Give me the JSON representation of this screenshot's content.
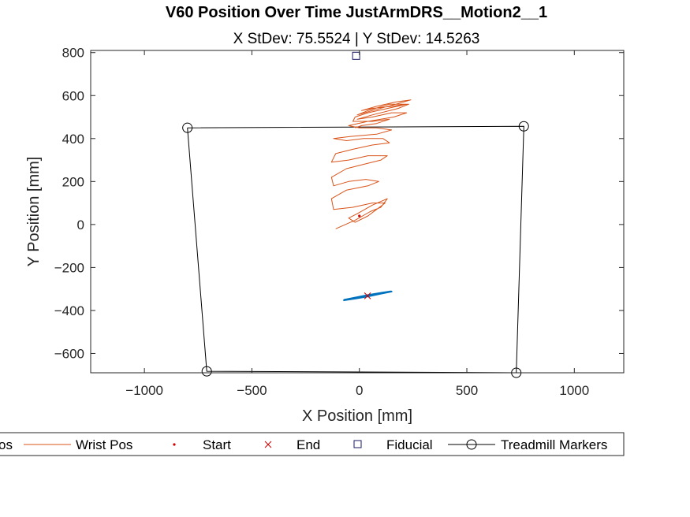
{
  "chart_data": {
    "type": "line",
    "title": "V60 Position Over Time JustArmDRS__Motion2__1",
    "subtitle": "X StDev: 75.5524  |  Y StDev: 14.5263",
    "xlabel": "X Position [mm]",
    "ylabel": "Y Position [mm]",
    "xlim": [
      -1250,
      1230
    ],
    "ylim": [
      -690,
      810
    ],
    "xticks": [
      -1000,
      -500,
      0,
      500,
      1000
    ],
    "yticks": [
      -600,
      -400,
      -200,
      0,
      200,
      400,
      600,
      800
    ],
    "xtick_labels": [
      "−1000",
      "−500",
      "0",
      "500",
      "1000"
    ],
    "ytick_labels": [
      "−600",
      "−400",
      "−200",
      "0",
      "200",
      "400",
      "600",
      "800"
    ],
    "grid": false,
    "legend_position": "bottom-outside",
    "series": [
      {
        "name": "Elbow Pos",
        "legend_label": "os",
        "color": "#0072BD",
        "points": [
          [
            -75,
            -353
          ],
          [
            -20,
            -345
          ],
          [
            40,
            -335
          ],
          [
            100,
            -322
          ],
          [
            150,
            -312
          ],
          [
            100,
            -318
          ],
          [
            40,
            -330
          ],
          [
            -20,
            -342
          ],
          [
            -70,
            -350
          ],
          [
            -20,
            -340
          ],
          [
            40,
            -328
          ],
          [
            100,
            -318
          ],
          [
            145,
            -311
          ],
          [
            90,
            -320
          ],
          [
            30,
            -333
          ],
          [
            -30,
            -346
          ],
          [
            -60,
            -350
          ]
        ]
      },
      {
        "name": "Wrist Pos",
        "legend_label": "Wrist Pos",
        "color": "#D95319",
        "points": [
          [
            -110,
            -20
          ],
          [
            -20,
            20
          ],
          [
            50,
            60
          ],
          [
            100,
            80
          ],
          [
            130,
            120
          ],
          [
            60,
            90
          ],
          [
            -10,
            50
          ],
          [
            -50,
            30
          ],
          [
            -20,
            10
          ],
          [
            40,
            40
          ],
          [
            80,
            70
          ],
          [
            120,
            100
          ],
          [
            60,
            100
          ],
          [
            -30,
            80
          ],
          [
            -120,
            70
          ],
          [
            -130,
            120
          ],
          [
            -60,
            160
          ],
          [
            40,
            180
          ],
          [
            90,
            200
          ],
          [
            30,
            210
          ],
          [
            -50,
            200
          ],
          [
            -120,
            180
          ],
          [
            -130,
            220
          ],
          [
            -60,
            260
          ],
          [
            20,
            280
          ],
          [
            100,
            300
          ],
          [
            130,
            320
          ],
          [
            40,
            320
          ],
          [
            -50,
            300
          ],
          [
            -130,
            290
          ],
          [
            -110,
            330
          ],
          [
            -30,
            350
          ],
          [
            60,
            370
          ],
          [
            140,
            380
          ],
          [
            110,
            400
          ],
          [
            20,
            400
          ],
          [
            -60,
            390
          ],
          [
            -120,
            400
          ],
          [
            -40,
            410
          ],
          [
            80,
            420
          ],
          [
            150,
            440
          ],
          [
            80,
            450
          ],
          [
            0,
            450
          ],
          [
            -50,
            460
          ],
          [
            40,
            480
          ],
          [
            160,
            500
          ],
          [
            220,
            520
          ],
          [
            150,
            520
          ],
          [
            60,
            500
          ],
          [
            -10,
            490
          ],
          [
            60,
            510
          ],
          [
            180,
            540
          ],
          [
            230,
            560
          ],
          [
            140,
            560
          ],
          [
            40,
            530
          ],
          [
            -10,
            510
          ],
          [
            60,
            530
          ],
          [
            170,
            560
          ],
          [
            240,
            580
          ],
          [
            170,
            570
          ],
          [
            80,
            550
          ],
          [
            10,
            530
          ],
          [
            60,
            540
          ],
          [
            150,
            550
          ],
          [
            220,
            560
          ],
          [
            130,
            540
          ],
          [
            40,
            520
          ],
          [
            -20,
            500
          ],
          [
            -30,
            480
          ],
          [
            60,
            480
          ],
          [
            140,
            490
          ],
          [
            80,
            470
          ],
          [
            10,
            460
          ],
          [
            -20,
            450
          ]
        ]
      }
    ],
    "start": {
      "name": "Start",
      "color": "#cc0000",
      "points": [
        [
          0,
          40
        ]
      ]
    },
    "end": {
      "name": "End",
      "color": "#cc0000",
      "points": [
        [
          38,
          -332
        ]
      ]
    },
    "fiducial": {
      "name": "Fiducial",
      "color": "#1a1a66",
      "points": [
        [
          -15,
          785
        ]
      ]
    },
    "treadmill_markers": {
      "name": "Treadmill Markers",
      "color": "#000000",
      "points": [
        [
          -800,
          450
        ],
        [
          765,
          457
        ],
        [
          730,
          -690
        ],
        [
          -710,
          -683
        ]
      ]
    }
  }
}
